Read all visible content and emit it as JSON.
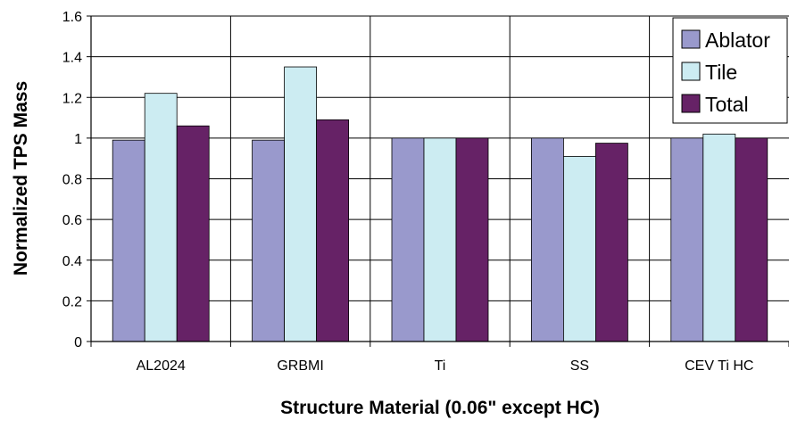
{
  "chart_data": {
    "type": "bar",
    "title": "",
    "xlabel": "Structure Material (0.06\" except HC)",
    "ylabel": "Normalized TPS Mass",
    "categories": [
      "AL2024",
      "GRBMI",
      "Ti",
      "SS",
      "CEV Ti HC"
    ],
    "series": [
      {
        "name": "Ablator",
        "values": [
          0.99,
          0.99,
          1.0,
          1.0,
          1.0
        ],
        "color": "#9999cc"
      },
      {
        "name": "Tile",
        "values": [
          1.22,
          1.35,
          1.0,
          0.91,
          1.02
        ],
        "color": "#ccecf2"
      },
      {
        "name": "Total",
        "values": [
          1.06,
          1.09,
          1.0,
          0.975,
          1.0
        ],
        "color": "#662266"
      }
    ],
    "ylim": [
      0,
      1.6
    ],
    "yticks": [
      "0",
      "0.2",
      "0.4",
      "0.6",
      "0.8",
      "1",
      "1.2",
      "1.4",
      "1.6"
    ],
    "grid": "horizontal and vertical",
    "legend_position": "top-right"
  }
}
